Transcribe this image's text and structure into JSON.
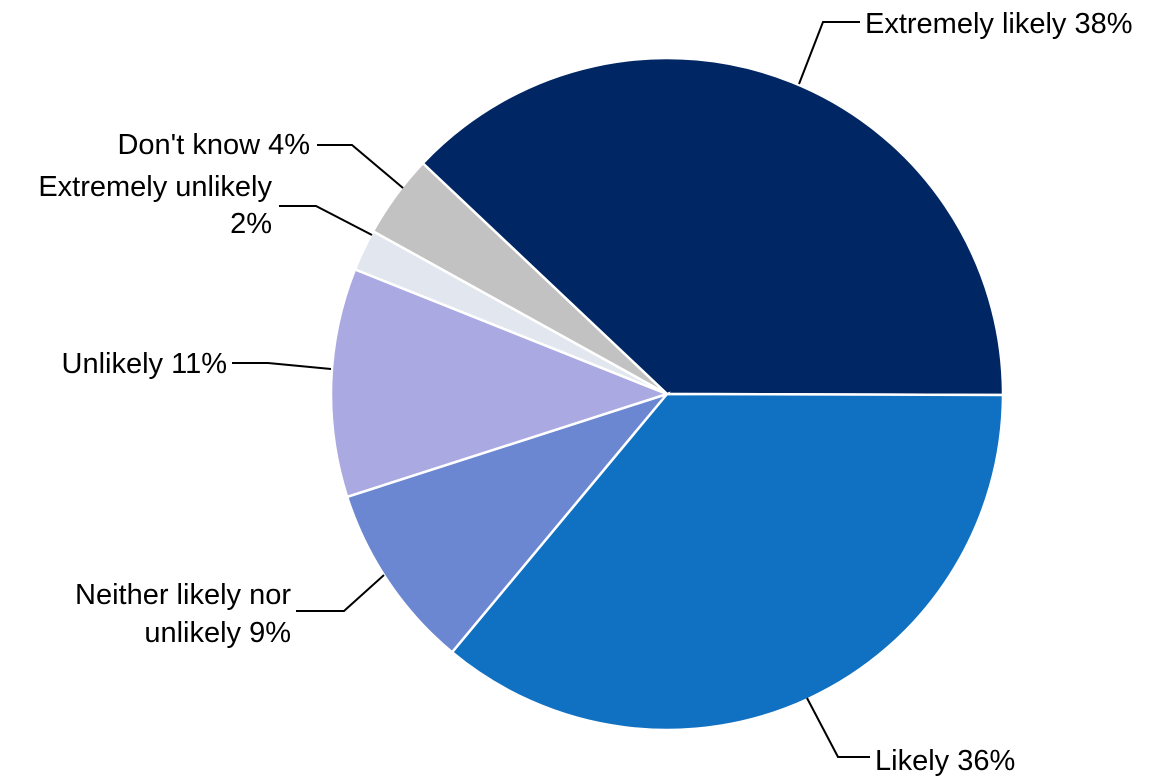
{
  "chart_data": {
    "type": "pie",
    "title": "",
    "slices": [
      {
        "name": "Extremely likely",
        "value": 38,
        "label_lines": [
          "Extremely likely 38%"
        ],
        "color": "#002663"
      },
      {
        "name": "Likely",
        "value": 36,
        "label_lines": [
          "Likely 36%"
        ],
        "color": "#1070C2"
      },
      {
        "name": "Neither likely nor unlikely",
        "value": 9,
        "label_lines": [
          "Neither likely nor",
          "unlikely 9%"
        ],
        "color": "#6C87D2"
      },
      {
        "name": "Unlikely",
        "value": 11,
        "label_lines": [
          "Unlikely 11%"
        ],
        "color": "#ABA9E2"
      },
      {
        "name": "Extremely unlikely",
        "value": 2,
        "label_lines": [
          "Extremely unlikely",
          "2%"
        ],
        "color": "#E2E6EE"
      },
      {
        "name": "Don't know",
        "value": 4,
        "label_lines": [
          "Don't know 4%"
        ],
        "color": "#C2C2C2"
      }
    ]
  }
}
